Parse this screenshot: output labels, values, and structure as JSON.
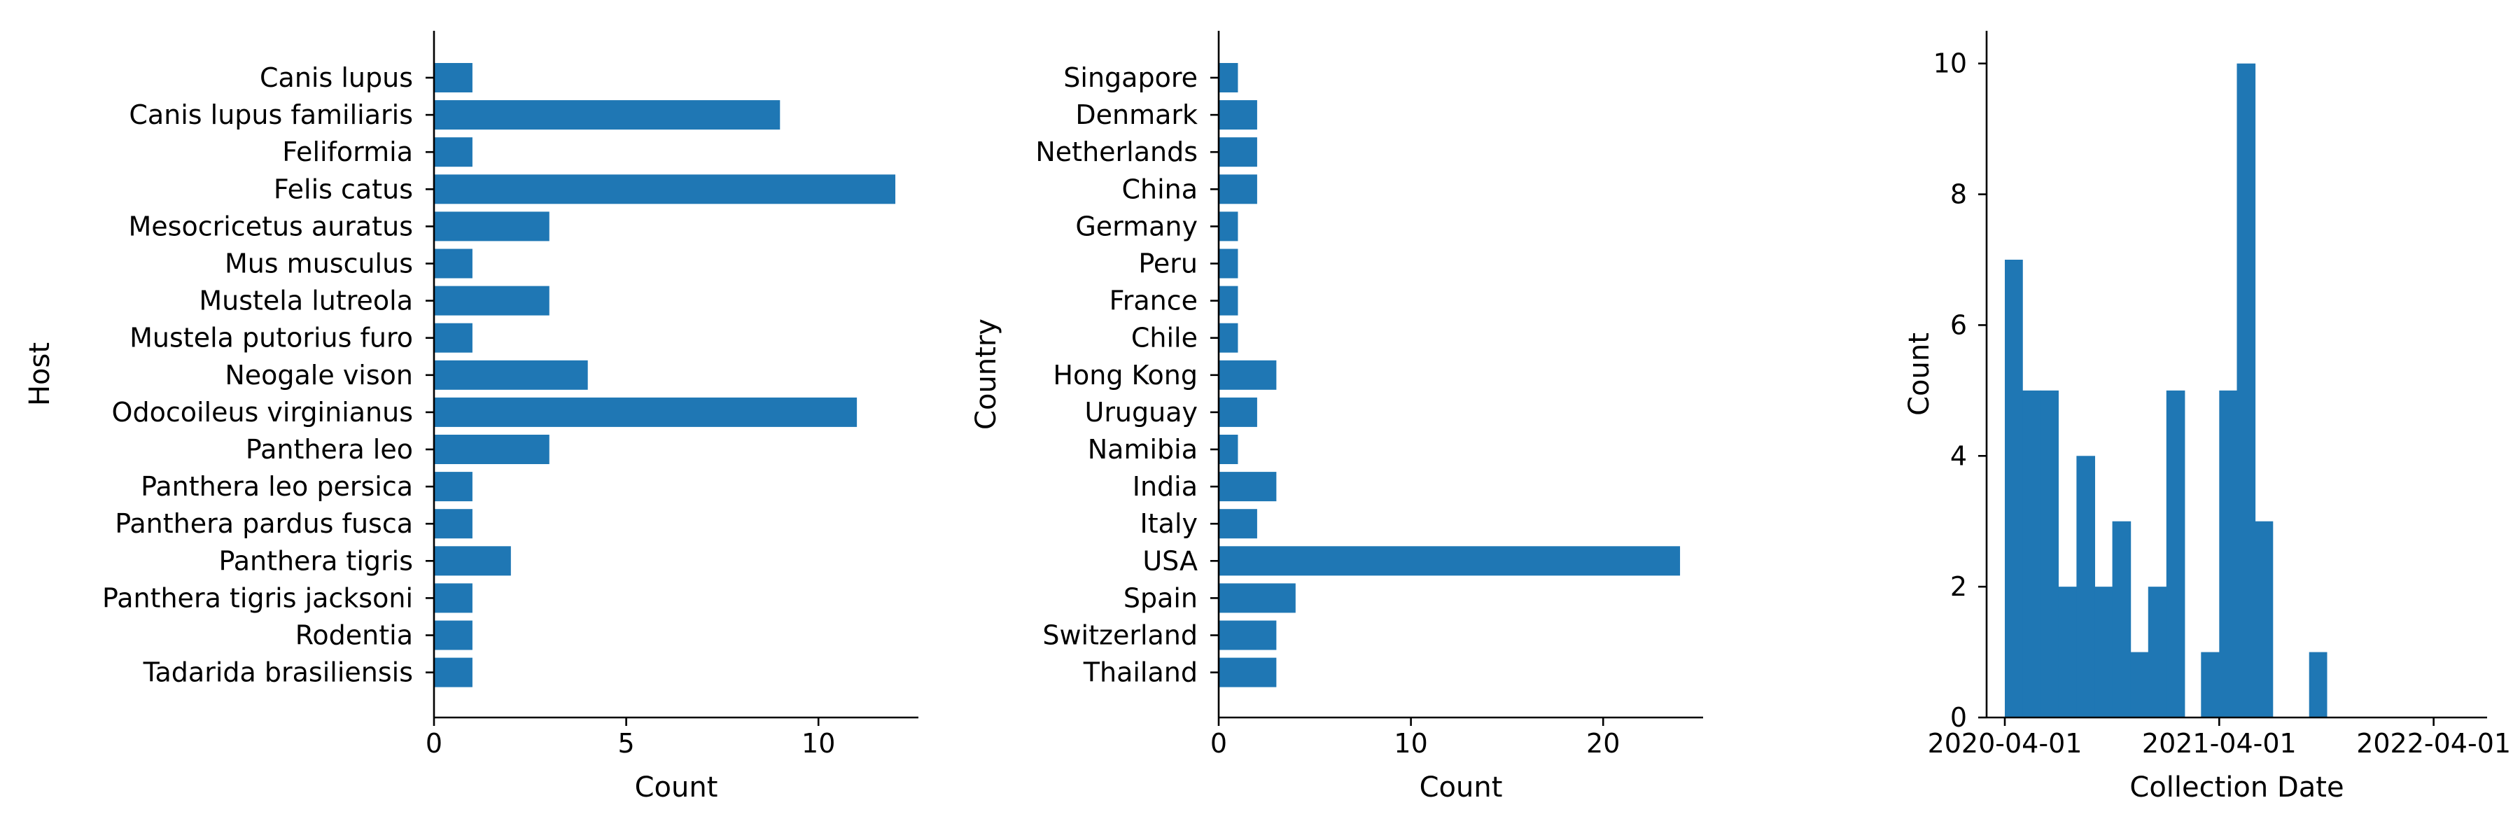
{
  "chart_data": [
    {
      "type": "bar",
      "orientation": "horizontal",
      "ylabel": "Host",
      "xlabel": "Count",
      "categories": [
        "Canis lupus",
        "Canis lupus familiaris",
        "Feliformia",
        "Felis catus",
        "Mesocricetus auratus",
        "Mus musculus",
        "Mustela lutreola",
        "Mustela putorius furo",
        "Neogale vison",
        "Odocoileus virginianus",
        "Panthera leo",
        "Panthera leo persica",
        "Panthera pardus fusca",
        "Panthera tigris",
        "Panthera tigris jacksoni",
        "Rodentia",
        "Tadarida brasiliensis"
      ],
      "values": [
        1,
        9,
        1,
        12,
        3,
        1,
        3,
        1,
        4,
        11,
        3,
        1,
        1,
        2,
        1,
        1,
        1
      ],
      "xlim": [
        0,
        12.6
      ],
      "xticks": [
        0,
        5,
        10
      ],
      "xtick_labels": [
        "0",
        "5",
        "10"
      ],
      "color": "#1f77b4",
      "grid": false
    },
    {
      "type": "bar",
      "orientation": "horizontal",
      "ylabel": "Country",
      "xlabel": "Count",
      "categories": [
        "Singapore",
        "Denmark",
        "Netherlands",
        "China",
        "Germany",
        "Peru",
        "France",
        "Chile",
        "Hong Kong",
        "Uruguay",
        "Namibia",
        "India",
        "Italy",
        "USA",
        "Spain",
        "Switzerland",
        "Thailand"
      ],
      "values": [
        1,
        2,
        2,
        2,
        1,
        1,
        1,
        1,
        3,
        2,
        1,
        3,
        2,
        24,
        4,
        3,
        3
      ],
      "xlim": [
        0,
        25.2
      ],
      "xticks": [
        0,
        10,
        20
      ],
      "xtick_labels": [
        "0",
        "10",
        "20"
      ],
      "color": "#1f77b4",
      "grid": false
    },
    {
      "type": "histogram",
      "xlabel": "Collection Date",
      "ylabel": "Count",
      "bins": [
        {
          "start": "2020-04-01",
          "end": "2020-05-01",
          "count": 7
        },
        {
          "start": "2020-05-01",
          "end": "2020-06-01",
          "count": 5
        },
        {
          "start": "2020-06-01",
          "end": "2020-07-01",
          "count": 5
        },
        {
          "start": "2020-07-01",
          "end": "2020-08-01",
          "count": 2
        },
        {
          "start": "2020-08-01",
          "end": "2020-09-01",
          "count": 4
        },
        {
          "start": "2020-09-01",
          "end": "2020-10-01",
          "count": 2
        },
        {
          "start": "2020-10-01",
          "end": "2020-11-01",
          "count": 3
        },
        {
          "start": "2020-11-01",
          "end": "2020-12-01",
          "count": 1
        },
        {
          "start": "2020-12-01",
          "end": "2021-01-01",
          "count": 2
        },
        {
          "start": "2021-01-01",
          "end": "2021-02-01",
          "count": 5
        },
        {
          "start": "2021-03-01",
          "end": "2021-04-01",
          "count": 1
        },
        {
          "start": "2021-04-01",
          "end": "2021-05-01",
          "count": 5
        },
        {
          "start": "2021-05-01",
          "end": "2021-06-01",
          "count": 10
        },
        {
          "start": "2021-06-01",
          "end": "2021-07-01",
          "count": 3
        },
        {
          "start": "2021-09-01",
          "end": "2021-10-01",
          "count": 1
        }
      ],
      "xlim": [
        "2020-03-01",
        "2022-07-01"
      ],
      "ylim": [
        0,
        10.5
      ],
      "xticks": [
        "2020-04-01",
        "2021-04-01",
        "2022-04-01"
      ],
      "xtick_labels": [
        "2020-04-01",
        "2021-04-01",
        "2022-04-01"
      ],
      "yticks": [
        0,
        2,
        4,
        6,
        8,
        10
      ],
      "ytick_labels": [
        "0",
        "2",
        "4",
        "6",
        "8",
        "10"
      ],
      "color": "#1f77b4",
      "grid": false
    }
  ]
}
